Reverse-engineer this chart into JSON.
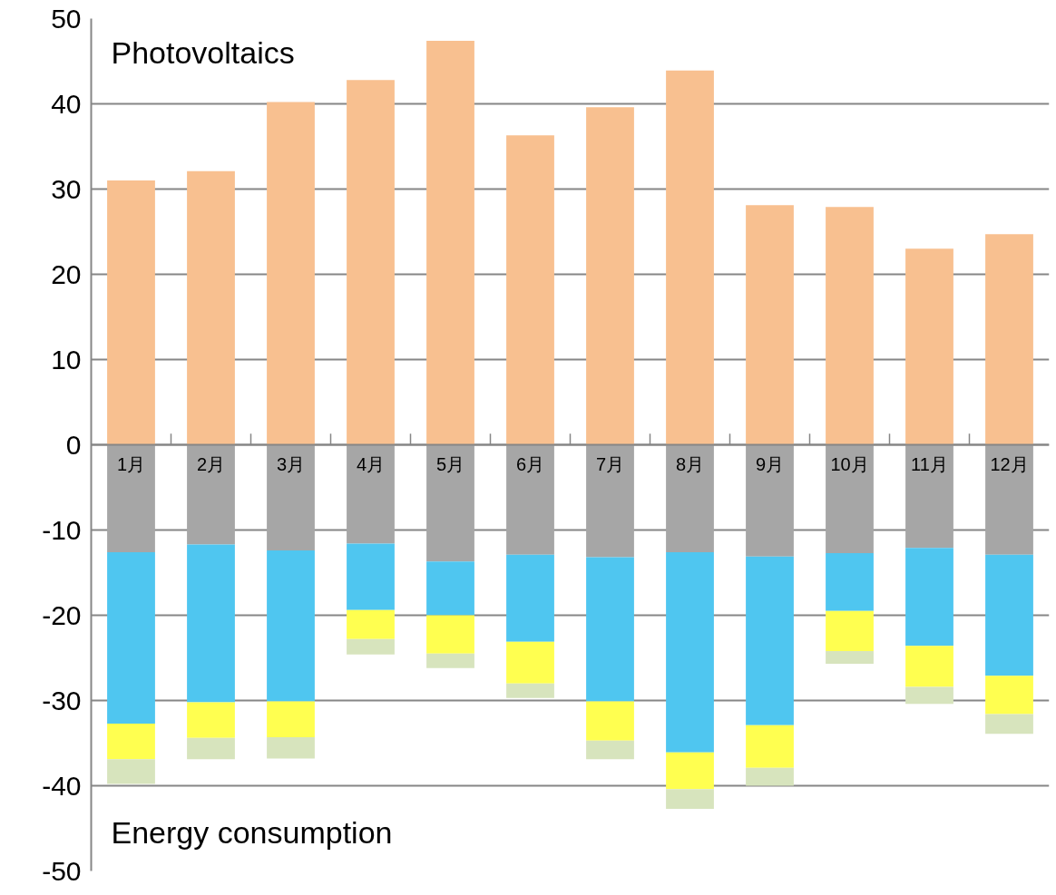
{
  "chart_data": {
    "type": "bar",
    "stacked": true,
    "grid": "y",
    "categories": [
      "1月",
      "2月",
      "3月",
      "4月",
      "5月",
      "6月",
      "7月",
      "8月",
      "9月",
      "10月",
      "11月",
      "12月"
    ],
    "ylim": [
      -50,
      50
    ],
    "yticks": [
      -50,
      -40,
      -30,
      -20,
      -10,
      0,
      10,
      20,
      30,
      40,
      50
    ],
    "annotations": [
      "Photovoltaics",
      "Energy consumption"
    ],
    "series": [
      {
        "color": "#f8c090",
        "values": [
          31.0,
          32.1,
          40.2,
          42.8,
          47.4,
          36.3,
          39.6,
          43.9,
          28.1,
          27.9,
          23.0,
          24.7
        ]
      },
      {
        "color": "#a6a6a6",
        "values": [
          -12.6,
          -11.7,
          -12.4,
          -11.6,
          -13.7,
          -12.9,
          -13.2,
          -12.6,
          -13.1,
          -12.7,
          -12.1,
          -12.9
        ]
      },
      {
        "color": "#4fc6f0",
        "values": [
          -20.1,
          -18.5,
          -17.7,
          -7.8,
          -6.3,
          -10.2,
          -16.9,
          -23.5,
          -19.8,
          -6.8,
          -11.5,
          -14.2
        ]
      },
      {
        "color": "#ffff50",
        "values": [
          -4.2,
          -4.2,
          -4.2,
          -3.4,
          -4.5,
          -4.9,
          -4.6,
          -4.3,
          -5.0,
          -4.7,
          -4.8,
          -4.5
        ]
      },
      {
        "color": "#d7e4bd",
        "values": [
          -2.9,
          -2.5,
          -2.5,
          -1.8,
          -1.7,
          -1.7,
          -2.2,
          -2.3,
          -2.1,
          -1.5,
          -2.0,
          -2.3
        ]
      }
    ]
  }
}
